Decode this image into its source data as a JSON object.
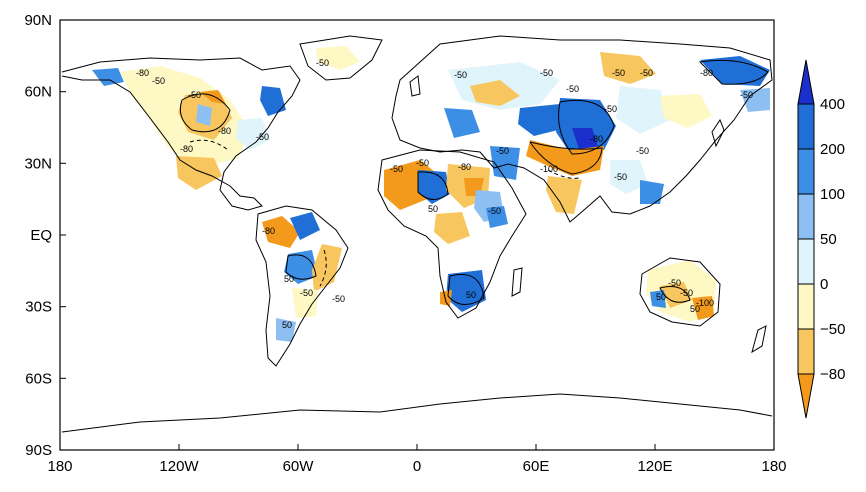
{
  "map": {
    "y_ticks": [
      "90N",
      "60N",
      "30N",
      "EQ",
      "30S",
      "60S",
      "90S"
    ],
    "x_ticks": [
      "180",
      "120W",
      "60W",
      "0",
      "60E",
      "120E",
      "180"
    ],
    "contour_labels": [
      "-80",
      "-50",
      "-50",
      "-80",
      "-50",
      "-50",
      "-80",
      "-80",
      "-50",
      "-50",
      "-80",
      "-50",
      "50",
      "-50",
      "-80",
      "-50",
      "-50",
      "-50",
      "-50",
      "-80",
      "-100",
      "-50",
      "-50",
      "-50",
      "50",
      "50",
      "-50",
      "-50",
      "50",
      "50",
      "-50",
      "50",
      "-50",
      "-100",
      "-50",
      "-50"
    ]
  },
  "colorbar": {
    "levels": [
      "400",
      "200",
      "100",
      "50",
      "0",
      "−50",
      "−80"
    ],
    "colors": [
      "#1a2fcc",
      "#1f6fd6",
      "#3d8fe6",
      "#8dbff2",
      "#dff4fb",
      "#fdf8c4",
      "#f8c65e",
      "#f39a1c"
    ]
  }
}
